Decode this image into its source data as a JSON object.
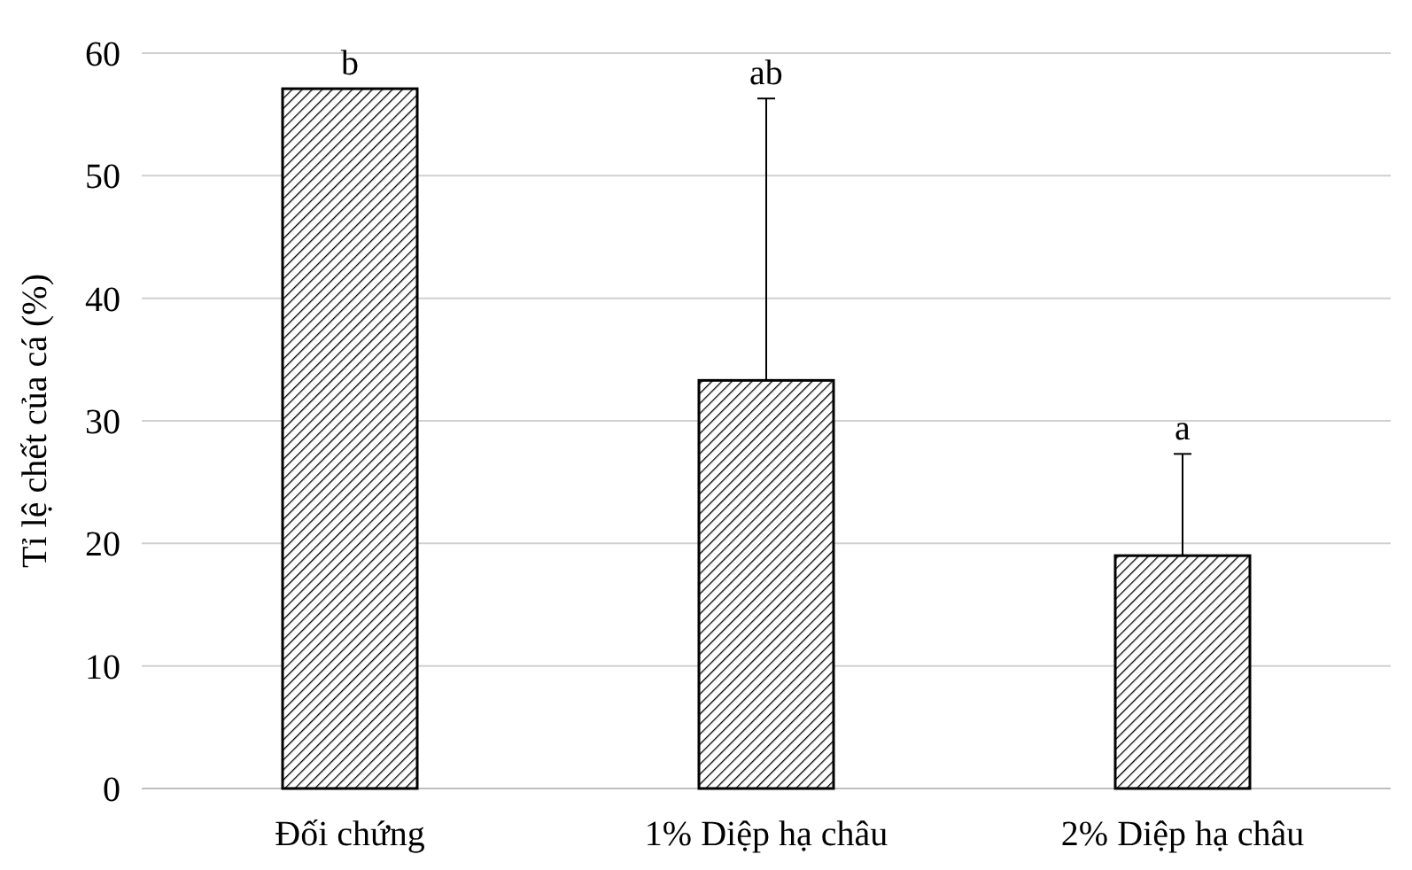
{
  "chart_data": {
    "type": "bar",
    "ylabel": "Tỉ lệ chết của cá (%)",
    "categories": [
      "Đối chứng",
      "1% Diệp hạ châu",
      "2% Diệp hạ châu"
    ],
    "values": [
      57.1,
      33.3,
      19.0
    ],
    "errors": [
      null,
      [
        33.3,
        56.3
      ],
      [
        19.0,
        27.3
      ]
    ],
    "color": "#000000",
    "ylim": [
      0,
      60
    ],
    "yticks": [
      0,
      10,
      20,
      30,
      40,
      50,
      60
    ],
    "grid": "y",
    "annotations": [
      {
        "text": "b",
        "x": "Đối chứng",
        "y": 57.1
      },
      {
        "text": "ab",
        "x": "1% Diệp hạ châu",
        "y": 56.3
      },
      {
        "text": "a",
        "x": "2% Diệp hạ châu",
        "y": 27.3
      }
    ]
  }
}
